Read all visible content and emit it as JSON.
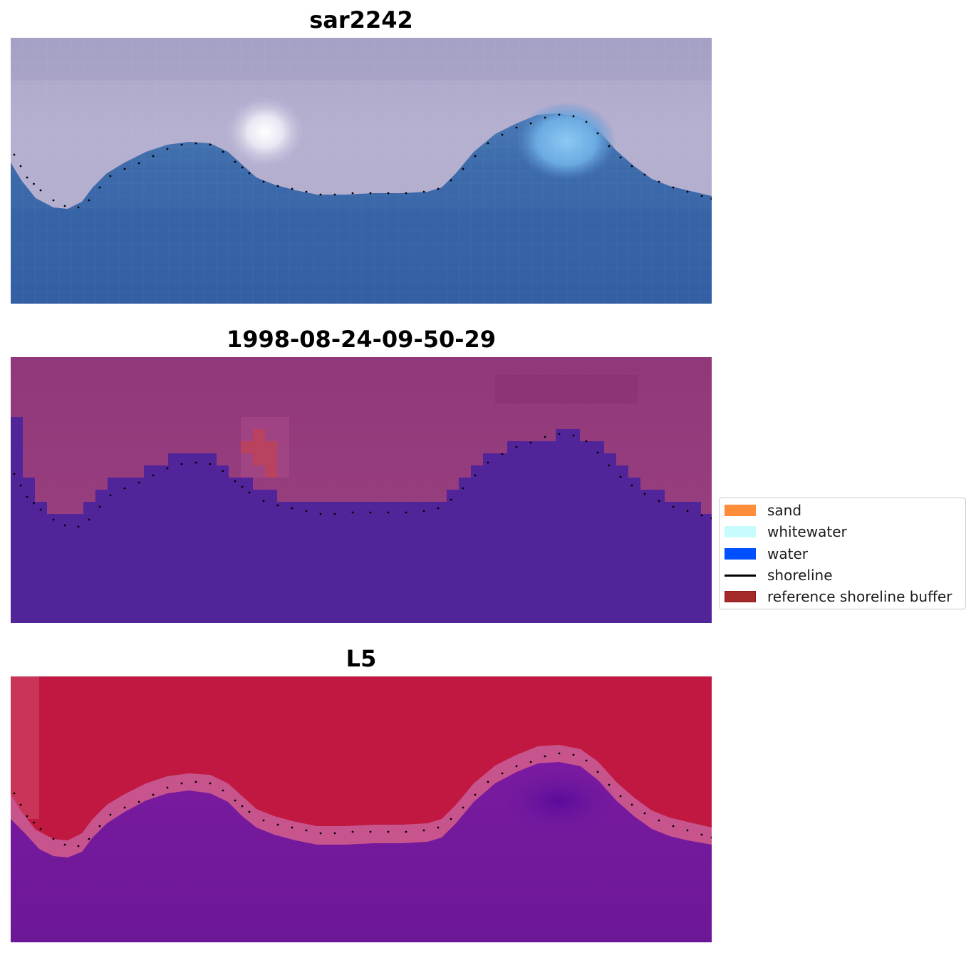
{
  "panels": [
    {
      "title": "sar2242",
      "description_colors": {
        "upper": "#b0a8cc",
        "lower": "#3868a8"
      }
    },
    {
      "title": "1998-08-24-09-50-29",
      "description_colors": {
        "upper": "#963e7e",
        "lower": "#52249a"
      }
    },
    {
      "title": "L5",
      "description_colors": {
        "upper": "#c0143c",
        "lower": "#6c1a9a"
      }
    }
  ],
  "legend": {
    "items": [
      {
        "label": "sand",
        "kind": "patch",
        "color": "#ff8c3a",
        "edge": "#ff8c3a"
      },
      {
        "label": "whitewater",
        "kind": "patch",
        "color": "#c8fcfc",
        "edge": "#c8fcfc"
      },
      {
        "label": "water",
        "kind": "patch",
        "color": "#0050ff",
        "edge": "#0050ff"
      },
      {
        "label": "shoreline",
        "kind": "line",
        "color": "#000000"
      },
      {
        "label": "reference shoreline buffer",
        "kind": "patch",
        "color": "#a52a2a",
        "edge": "#8b1a1a"
      }
    ]
  }
}
